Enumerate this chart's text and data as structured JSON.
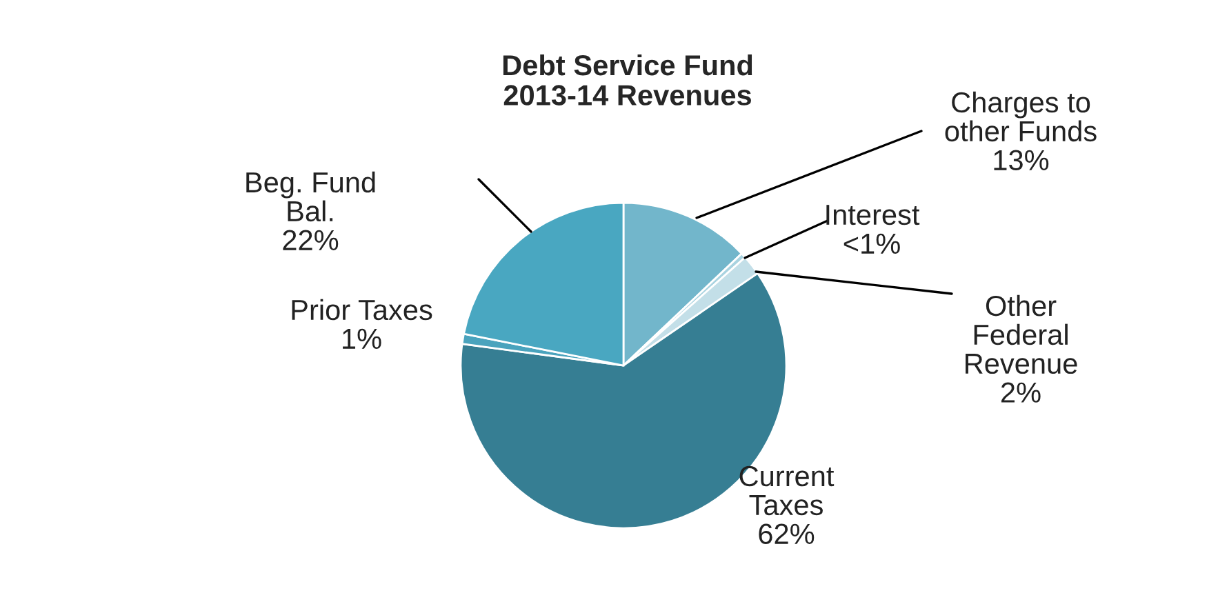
{
  "chart_data": {
    "type": "pie",
    "title": "Debt Service Fund\n2013-14 Revenues",
    "categories": [
      "Charges to\nother Funds",
      "Interest",
      "Other\nFederal\nRevenue",
      "Current\nTaxes",
      "Prior Taxes",
      "Beg. Fund\nBal."
    ],
    "values": [
      13,
      0.5,
      2,
      62,
      1,
      22
    ],
    "value_labels": [
      "13%",
      "<1%",
      "2%",
      "62%",
      "1%",
      "22%"
    ],
    "colors": [
      "#72b6cb",
      "#a9d3e0",
      "#c3dfe8",
      "#367e93",
      "#4aa3bd",
      "#49a7c1"
    ]
  }
}
